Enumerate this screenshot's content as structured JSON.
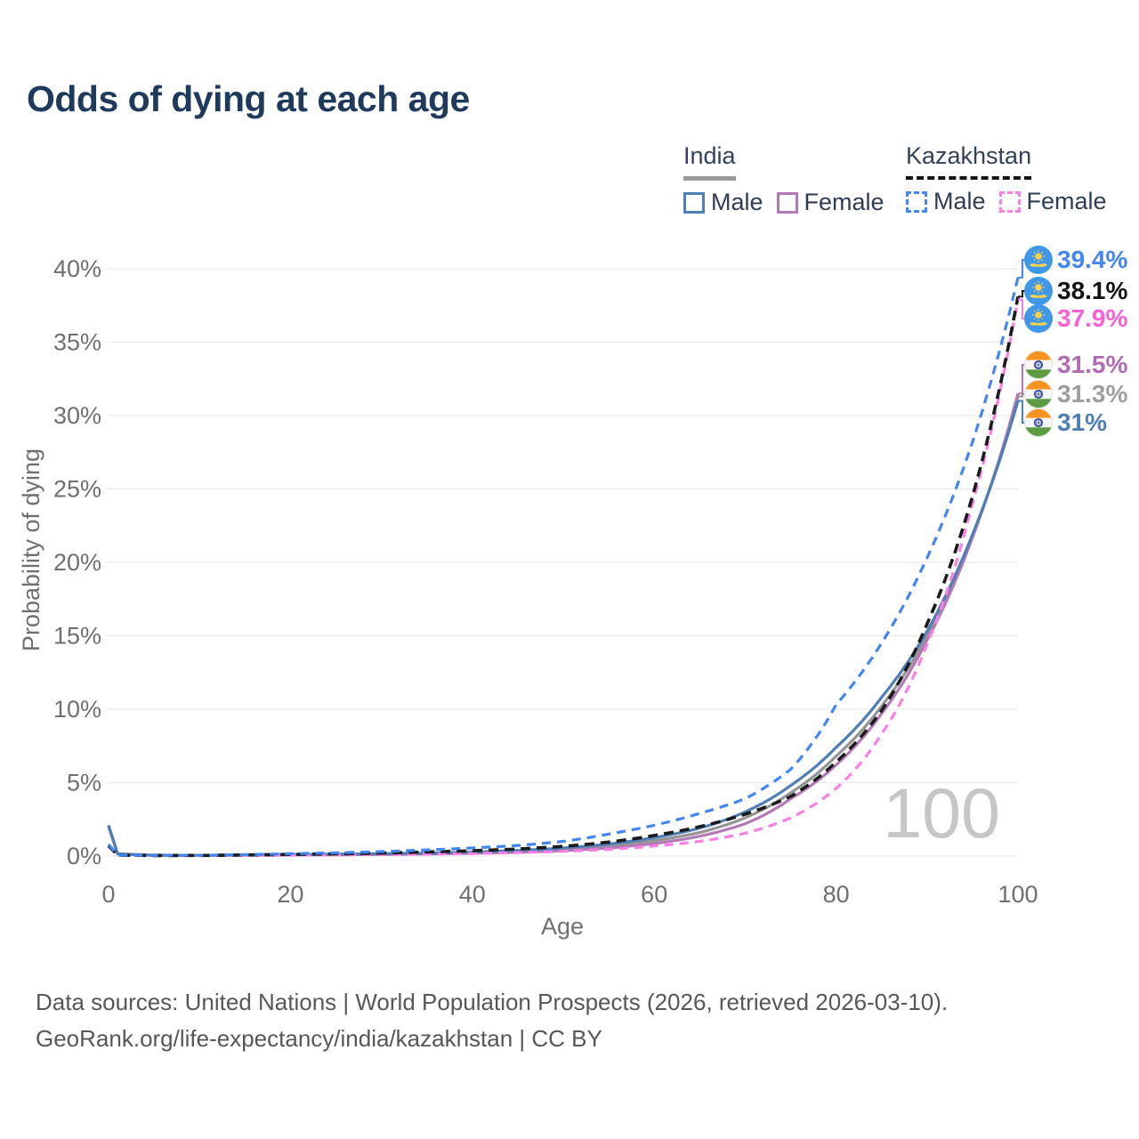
{
  "title": "Odds of dying at each age",
  "legend": {
    "groups": [
      {
        "id": "india",
        "title": "India",
        "underline_color": "#9a9a9a",
        "underline_style": "solid",
        "items": [
          {
            "label": "Male",
            "color": "#4e7eb6",
            "linestyle": "solid"
          },
          {
            "label": "Female",
            "color": "#b379b7",
            "linestyle": "solid"
          }
        ]
      },
      {
        "id": "kazakhstan",
        "title": "Kazakhstan",
        "underline_color": "#141414",
        "underline_style": "dashed",
        "items": [
          {
            "label": "Male",
            "color": "#4286f5",
            "linestyle": "dashed"
          },
          {
            "label": "Female",
            "color": "#fb7fe7",
            "linestyle": "dashed"
          }
        ]
      }
    ]
  },
  "chart_data": {
    "type": "line",
    "xlabel": "Age",
    "ylabel": "Probability of dying",
    "xlim": [
      0,
      100
    ],
    "ylim": [
      0,
      40
    ],
    "x_ticks": [
      0,
      20,
      40,
      60,
      80,
      100
    ],
    "y_ticks": [
      0,
      5,
      10,
      15,
      20,
      25,
      30,
      35,
      40
    ],
    "y_tick_suffix": "%",
    "grid": "horizontal",
    "legend_position": "top-right",
    "watermark": "100",
    "series": [
      {
        "id": "india-total",
        "name": "India Both sexes",
        "country": "India",
        "flag": "india",
        "color": "#949494",
        "label_color": "#9e9e9e",
        "linestyle": "solid",
        "end_label": "31.3%",
        "end_value": 31.3,
        "points": [
          [
            0,
            2.05
          ],
          [
            1,
            0.15
          ],
          [
            5,
            0.055
          ],
          [
            10,
            0.045
          ],
          [
            15,
            0.07
          ],
          [
            20,
            0.09
          ],
          [
            25,
            0.11
          ],
          [
            30,
            0.14
          ],
          [
            35,
            0.17
          ],
          [
            40,
            0.23
          ],
          [
            45,
            0.32
          ],
          [
            50,
            0.47
          ],
          [
            55,
            0.7
          ],
          [
            60,
            1.05
          ],
          [
            65,
            1.6
          ],
          [
            70,
            2.6
          ],
          [
            75,
            4.3
          ],
          [
            80,
            6.8
          ],
          [
            85,
            10.2
          ],
          [
            90,
            15.0
          ],
          [
            95,
            21.8
          ],
          [
            100,
            31.3
          ]
        ]
      },
      {
        "id": "india-female",
        "name": "India Female",
        "country": "India",
        "flag": "india",
        "color": "#b379b7",
        "label_color": "#b16bb4",
        "linestyle": "solid",
        "end_label": "31.5%",
        "end_value": 31.5,
        "points": [
          [
            0,
            2.0
          ],
          [
            1,
            0.14
          ],
          [
            5,
            0.05
          ],
          [
            10,
            0.04
          ],
          [
            15,
            0.055
          ],
          [
            20,
            0.07
          ],
          [
            25,
            0.085
          ],
          [
            30,
            0.11
          ],
          [
            35,
            0.14
          ],
          [
            40,
            0.18
          ],
          [
            45,
            0.25
          ],
          [
            50,
            0.37
          ],
          [
            55,
            0.55
          ],
          [
            60,
            0.85
          ],
          [
            65,
            1.35
          ],
          [
            70,
            2.2
          ],
          [
            75,
            3.9
          ],
          [
            80,
            6.2
          ],
          [
            85,
            9.7
          ],
          [
            90,
            14.7
          ],
          [
            95,
            21.7
          ],
          [
            100,
            31.5
          ]
        ]
      },
      {
        "id": "india-male",
        "name": "India Male",
        "country": "India",
        "flag": "india",
        "color": "#4e7eb6",
        "label_color": "#4e7eb6",
        "linestyle": "solid",
        "end_label": "31%",
        "end_value": 31.0,
        "points": [
          [
            0,
            2.1
          ],
          [
            1,
            0.15
          ],
          [
            5,
            0.06
          ],
          [
            10,
            0.05
          ],
          [
            15,
            0.08
          ],
          [
            20,
            0.11
          ],
          [
            25,
            0.13
          ],
          [
            30,
            0.16
          ],
          [
            35,
            0.2
          ],
          [
            40,
            0.27
          ],
          [
            45,
            0.38
          ],
          [
            50,
            0.55
          ],
          [
            55,
            0.82
          ],
          [
            60,
            1.25
          ],
          [
            65,
            1.9
          ],
          [
            70,
            3.0
          ],
          [
            75,
            4.8
          ],
          [
            80,
            7.4
          ],
          [
            85,
            10.8
          ],
          [
            90,
            15.3
          ],
          [
            95,
            21.9
          ],
          [
            100,
            31.0
          ]
        ]
      },
      {
        "id": "kazakhstan-female",
        "name": "Kazakhstan Female",
        "country": "Kazakhstan",
        "flag": "kazakhstan",
        "color": "#fb7fe7",
        "label_color": "#fa5fd8",
        "linestyle": "dashed",
        "end_label": "37.9%",
        "end_value": 37.9,
        "points": [
          [
            0,
            0.65
          ],
          [
            1,
            0.05
          ],
          [
            5,
            0.03
          ],
          [
            10,
            0.03
          ],
          [
            15,
            0.045
          ],
          [
            20,
            0.06
          ],
          [
            25,
            0.08
          ],
          [
            30,
            0.1
          ],
          [
            35,
            0.13
          ],
          [
            40,
            0.17
          ],
          [
            45,
            0.23
          ],
          [
            50,
            0.32
          ],
          [
            55,
            0.45
          ],
          [
            60,
            0.68
          ],
          [
            65,
            1.0
          ],
          [
            70,
            1.55
          ],
          [
            75,
            2.6
          ],
          [
            80,
            4.6
          ],
          [
            85,
            8.3
          ],
          [
            90,
            14.4
          ],
          [
            95,
            24.0
          ],
          [
            100,
            37.9
          ]
        ]
      },
      {
        "id": "kazakhstan-total",
        "name": "Kazakhstan Both sexes",
        "country": "Kazakhstan",
        "flag": "kazakhstan",
        "color": "#1b1b1b",
        "label_color": "#141414",
        "linestyle": "dashed",
        "end_label": "38.1%",
        "end_value": 38.1,
        "points": [
          [
            0,
            0.72
          ],
          [
            1,
            0.055
          ],
          [
            5,
            0.038
          ],
          [
            10,
            0.04
          ],
          [
            15,
            0.07
          ],
          [
            20,
            0.11
          ],
          [
            25,
            0.15
          ],
          [
            30,
            0.2
          ],
          [
            35,
            0.28
          ],
          [
            40,
            0.36
          ],
          [
            45,
            0.48
          ],
          [
            50,
            0.66
          ],
          [
            55,
            0.95
          ],
          [
            60,
            1.4
          ],
          [
            65,
            2.0
          ],
          [
            70,
            2.85
          ],
          [
            75,
            4.05
          ],
          [
            80,
            6.4
          ],
          [
            85,
            9.9
          ],
          [
            90,
            15.8
          ],
          [
            95,
            24.5
          ],
          [
            100,
            38.1
          ]
        ]
      },
      {
        "id": "kazakhstan-male",
        "name": "Kazakhstan Male",
        "country": "Kazakhstan",
        "flag": "kazakhstan",
        "color": "#4286f5",
        "label_color": "#4286f5",
        "linestyle": "dashed",
        "end_label": "39.4%",
        "end_value": 39.4,
        "points": [
          [
            0,
            0.8
          ],
          [
            1,
            0.06
          ],
          [
            5,
            0.045
          ],
          [
            10,
            0.05
          ],
          [
            15,
            0.09
          ],
          [
            20,
            0.16
          ],
          [
            25,
            0.22
          ],
          [
            30,
            0.3
          ],
          [
            35,
            0.42
          ],
          [
            40,
            0.55
          ],
          [
            45,
            0.72
          ],
          [
            50,
            1.0
          ],
          [
            55,
            1.5
          ],
          [
            60,
            2.1
          ],
          [
            65,
            2.9
          ],
          [
            70,
            3.9
          ],
          [
            75,
            5.9
          ],
          [
            80,
            10.3
          ],
          [
            85,
            14.5
          ],
          [
            90,
            20.3
          ],
          [
            95,
            28.2
          ],
          [
            100,
            39.4
          ]
        ]
      }
    ],
    "flag_colors": {
      "kazakhstan": {
        "field": "#3e97e9",
        "emblem": "#ffd24a"
      },
      "india": {
        "saffron": "#f7941e",
        "white": "#f7f7f7",
        "green": "#5b9b41",
        "chakra": "#2a3f9d"
      }
    }
  },
  "colors": {
    "title": "#1e3a5c",
    "axis_text": "#6f6f6f",
    "grid": "#e9e9e9",
    "watermark": "#c6c6c6"
  },
  "footer": {
    "line1": "Data sources: United Nations | World Population Prospects (2026, retrieved 2026-03-10).",
    "line2": "GeoRank.org/life-expectancy/india/kazakhstan | CC BY"
  }
}
